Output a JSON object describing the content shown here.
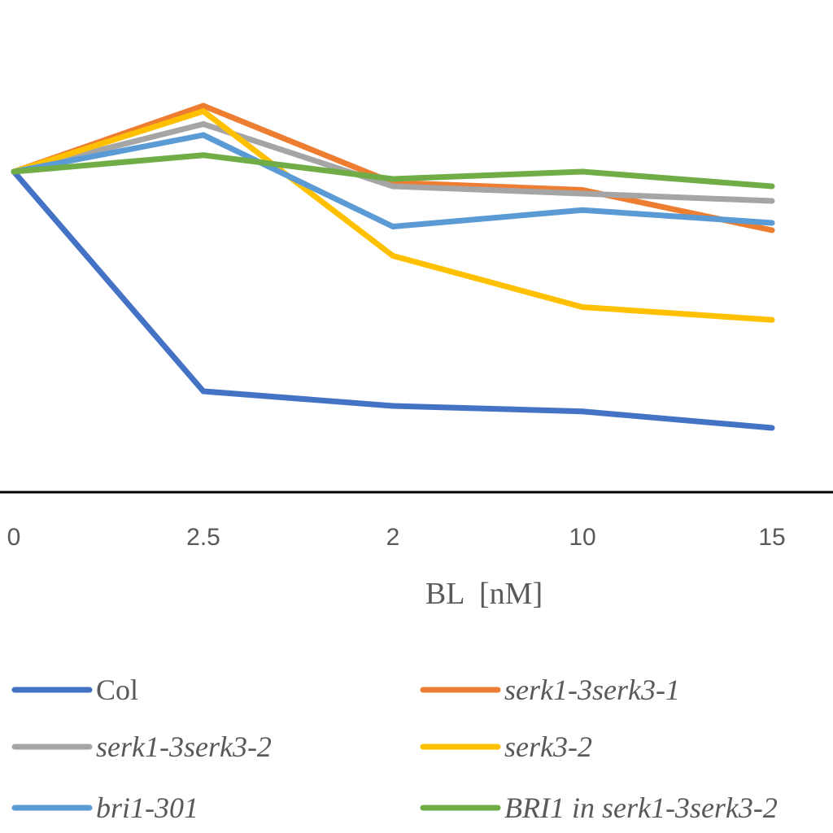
{
  "chart_data": {
    "type": "line",
    "title": "",
    "xlabel": "BL  [nM]",
    "ylabel": "",
    "categories": [
      "0",
      "2.5",
      "2",
      "10",
      "15"
    ],
    "grid": false,
    "legend_position": "bottom",
    "series": [
      {
        "name": "Col",
        "italic": false,
        "color": "#4472C4",
        "values": [
          100,
          40,
          36,
          34.5,
          30
        ]
      },
      {
        "name": "serk1-3serk3-1",
        "italic": true,
        "color": "#ED7D31",
        "values": [
          100,
          118,
          97,
          95,
          84
        ]
      },
      {
        "name": "serk1-3serk3-2",
        "italic": true,
        "color": "#A5A5A5",
        "values": [
          100,
          113,
          96,
          94,
          92
        ]
      },
      {
        "name": "serk3-2",
        "italic": true,
        "color": "#FFC000",
        "values": [
          100,
          116.5,
          77,
          63,
          59.5
        ]
      },
      {
        "name": "bri1-301",
        "italic": true,
        "color": "#5B9BD5",
        "values": [
          100,
          110,
          85,
          89.5,
          86
        ]
      },
      {
        "name": "BRI1 in serk1-3serk3-2",
        "italic": true,
        "color": "#70AD47",
        "values": [
          100,
          104.5,
          98,
          100,
          96
        ]
      }
    ]
  }
}
